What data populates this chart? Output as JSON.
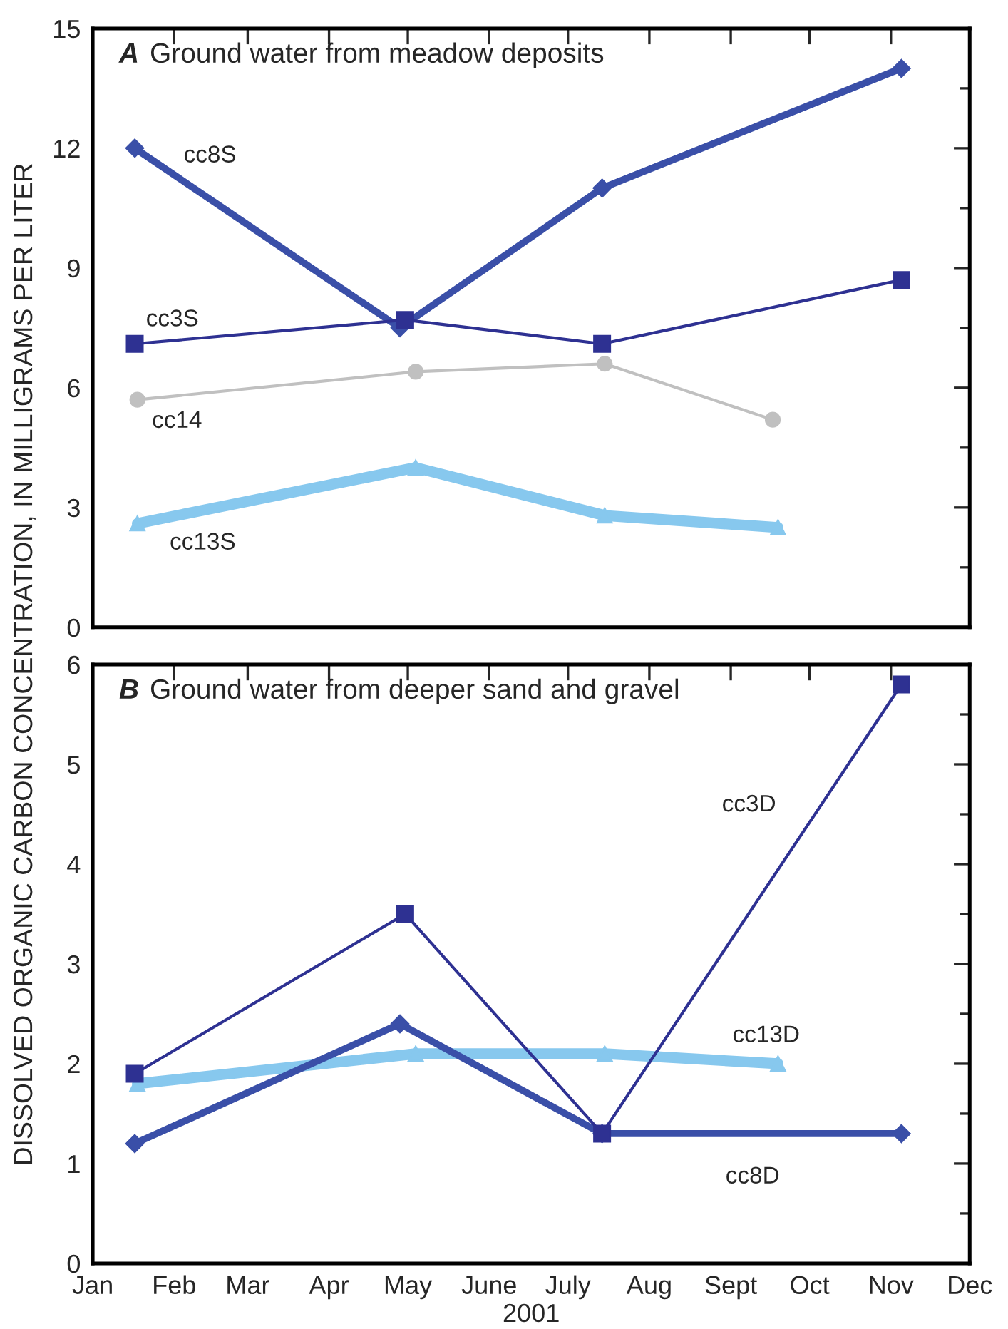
{
  "chart_data": [
    {
      "type": "line",
      "title": "A Ground water from meadow deposits",
      "ylabel": "DISSOLVED ORGANIC CARBON CONCENTRATION, IN MILLIGRAMS PER LITER",
      "xlim": [
        "2001-01-01",
        "2001-12-01"
      ],
      "xticks": [
        {
          "value": "2001-01-01",
          "label": null
        },
        {
          "value": "2001-02-01",
          "label": null
        },
        {
          "value": "2001-03-01",
          "label": null
        },
        {
          "value": "2001-04-01",
          "label": null
        },
        {
          "value": "2001-05-01",
          "label": null
        },
        {
          "value": "2001-06-01",
          "label": null
        },
        {
          "value": "2001-07-01",
          "label": null
        },
        {
          "value": "2001-08-01",
          "label": null
        },
        {
          "value": "2001-09-01",
          "label": null
        },
        {
          "value": "2001-10-01",
          "label": null
        },
        {
          "value": "2001-11-01",
          "label": null
        },
        {
          "value": "2001-12-01",
          "label": null
        }
      ],
      "ylim": [
        0,
        15
      ],
      "yticks": [
        0,
        {
          "value": 1.5,
          "label": null
        },
        3,
        {
          "value": 4.5,
          "label": null
        },
        6,
        {
          "value": 7.5,
          "label": null
        },
        9,
        {
          "value": 10.5,
          "label": null
        },
        12,
        {
          "value": 13.5,
          "label": null
        },
        15
      ],
      "tick_labels": "y",
      "grid": false,
      "legend": false,
      "series": [
        {
          "name": "cc8S",
          "color": "#3a4fa8",
          "marker": "diamond",
          "x": [
            "2001-01-17",
            "2001-04-28",
            "2001-07-14",
            "2001-11-05"
          ],
          "values": [
            12,
            7.5,
            11,
            14
          ]
        },
        {
          "name": "cc3S",
          "color": "#2e3192",
          "marker": "square",
          "x": [
            "2001-01-17",
            "2001-04-30",
            "2001-07-14",
            "2001-11-05"
          ],
          "values": [
            7.1,
            7.7,
            7.1,
            8.7
          ]
        },
        {
          "name": "cc14",
          "color": "#c0c0c0",
          "marker": "circle",
          "x": [
            "2001-01-18",
            "2001-05-04",
            "2001-07-15",
            "2001-09-17"
          ],
          "values": [
            5.7,
            6.4,
            6.6,
            5.2
          ]
        },
        {
          "name": "cc13S",
          "color": "#87c8ee",
          "marker": "triangle",
          "x": [
            "2001-01-18",
            "2001-05-04",
            "2001-07-15",
            "2001-09-19"
          ],
          "values": [
            2.6,
            4.0,
            2.8,
            2.5
          ]
        }
      ]
    },
    {
      "type": "line",
      "title": "B Ground water from deeper sand and gravel",
      "xlabel": "2001",
      "xlim": [
        "2001-01-01",
        "2001-12-01"
      ],
      "xticks": [
        {
          "value": "2001-01-01",
          "label": "Jan"
        },
        {
          "value": "2001-02-01",
          "label": "Feb"
        },
        {
          "value": "2001-03-01",
          "label": "Mar"
        },
        {
          "value": "2001-04-01",
          "label": "Apr"
        },
        {
          "value": "2001-05-01",
          "label": "May"
        },
        {
          "value": "2001-06-01",
          "label": "June"
        },
        {
          "value": "2001-07-01",
          "label": "July"
        },
        {
          "value": "2001-08-01",
          "label": "Aug"
        },
        {
          "value": "2001-09-01",
          "label": "Sept"
        },
        {
          "value": "2001-10-01",
          "label": "Oct"
        },
        {
          "value": "2001-11-01",
          "label": "Nov"
        },
        {
          "value": "2001-12-01",
          "label": "Dec"
        }
      ],
      "ylim": [
        0,
        6
      ],
      "yticks": [
        0,
        {
          "value": 0.5,
          "label": null
        },
        1,
        {
          "value": 1.5,
          "label": null
        },
        2,
        {
          "value": 2.5,
          "label": null
        },
        3,
        {
          "value": 3.5,
          "label": null
        },
        4,
        {
          "value": 4.5,
          "label": null
        },
        5,
        {
          "value": 5.5,
          "label": null
        },
        6
      ],
      "grid": false,
      "legend": false,
      "series": [
        {
          "name": "cc3D",
          "color": "#2e3192",
          "marker": "square",
          "x": [
            "2001-01-17",
            "2001-04-30",
            "2001-07-14",
            "2001-11-05"
          ],
          "values": [
            1.9,
            3.5,
            1.3,
            5.8
          ]
        },
        {
          "name": "cc13D",
          "color": "#87c8ee",
          "marker": "triangle",
          "x": [
            "2001-01-18",
            "2001-05-04",
            "2001-07-15",
            "2001-09-19"
          ],
          "values": [
            1.8,
            2.1,
            2.1,
            2.0
          ]
        },
        {
          "name": "cc8D",
          "color": "#3a4fa8",
          "marker": "diamond",
          "x": [
            "2001-01-17",
            "2001-04-28",
            "2001-07-14",
            "2001-11-05"
          ],
          "values": [
            1.2,
            2.4,
            1.3,
            1.3
          ]
        }
      ]
    }
  ]
}
